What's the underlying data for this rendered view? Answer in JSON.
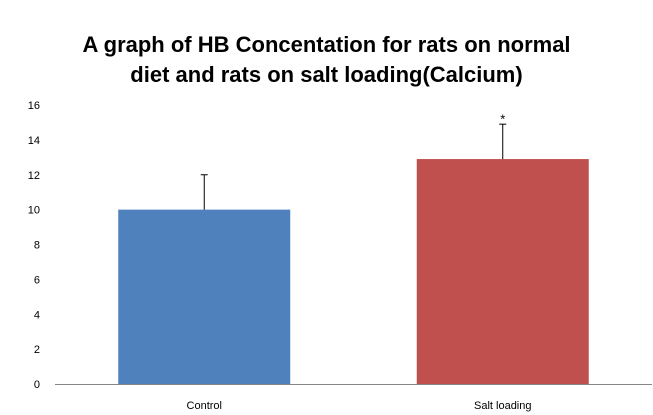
{
  "chart_data": {
    "type": "bar",
    "title_lines": [
      "A graph of HB Concentation for rats on normal",
      "diet and rats on salt loading(Calcium)"
    ],
    "categories": [
      "Control",
      "Salt loading"
    ],
    "values": [
      10,
      12.9
    ],
    "error_upper": [
      2.0,
      2.0
    ],
    "colors": [
      "#4f81bd",
      "#c0504d"
    ],
    "annotations": [
      "",
      "*"
    ],
    "ylim": [
      0,
      16
    ],
    "yticks": [
      0,
      2,
      4,
      6,
      8,
      10,
      12,
      14,
      16
    ],
    "grid": false,
    "legend": "none",
    "xlabel": "",
    "ylabel": ""
  }
}
